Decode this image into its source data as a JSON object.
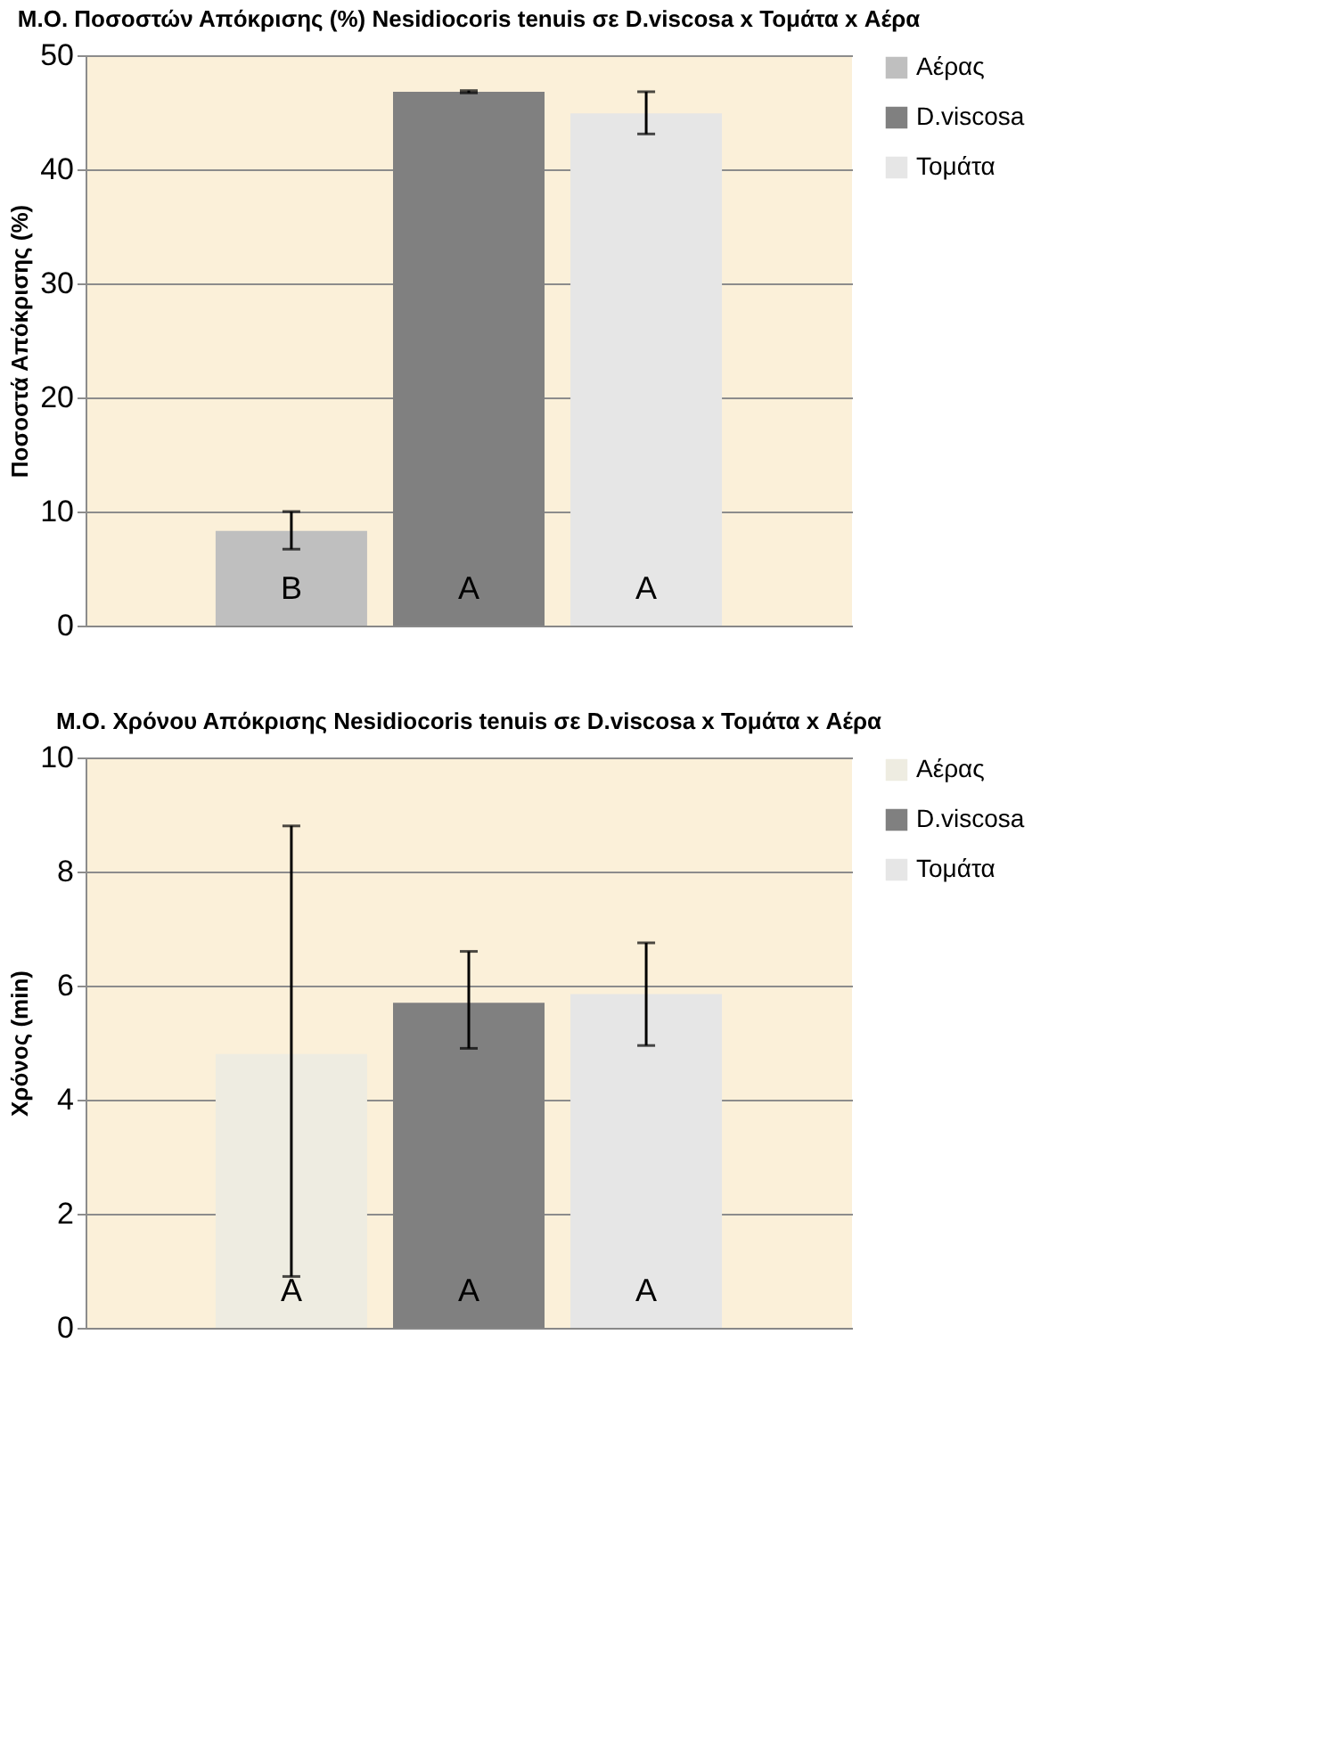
{
  "chart_data": [
    {
      "type": "bar",
      "title": "Μ.Ο. Ποσοστών Απόκρισης (%) Nesidiocoris tenuis σε D.viscosa x Τομάτα x Αέρα",
      "ylabel": "Ποσοστά Απόκρισης (%)",
      "categories": [
        null,
        null,
        null
      ],
      "ylim": [
        0,
        50
      ],
      "yticks": [
        0,
        10,
        20,
        30,
        40,
        50
      ],
      "grid": "y",
      "legend": "right",
      "tick_labels": "y",
      "series": [
        {
          "name": "Αέρας",
          "color": "#bfbfbf",
          "values": [
            8.3,
            null,
            null
          ],
          "errors": [
            [
              6.7,
              10.0
            ],
            null,
            null
          ]
        },
        {
          "name": "D.viscosa",
          "color": "#808080",
          "values": [
            null,
            46.8,
            null
          ],
          "errors": [
            null,
            [
              46.7,
              46.9
            ],
            null
          ]
        },
        {
          "name": "Τομάτα",
          "color": "#e6e6e6",
          "values": [
            null,
            null,
            44.9
          ],
          "errors": [
            null,
            null,
            [
              43.1,
              46.8
            ]
          ]
        }
      ],
      "annotations": [
        "B",
        "A",
        "A"
      ]
    },
    {
      "type": "bar",
      "title": "Μ.Ο. Χρόνου Απόκρισης Nesidiocoris tenuis σε D.viscosa x Τομάτα x Αέρα",
      "ylabel": "Χρόνος (min)",
      "categories": [
        null,
        null,
        null
      ],
      "ylim": [
        0,
        10
      ],
      "yticks": [
        0,
        2,
        4,
        6,
        8,
        10
      ],
      "grid": "y",
      "legend": "right",
      "tick_labels": "y",
      "series": [
        {
          "name": "Αέρας",
          "color": "#eeece1",
          "values": [
            4.8,
            null,
            null
          ],
          "errors": [
            [
              0.9,
              8.8
            ],
            null,
            null
          ]
        },
        {
          "name": "D.viscosa",
          "color": "#808080",
          "values": [
            null,
            5.7,
            null
          ],
          "errors": [
            null,
            [
              4.9,
              6.6
            ],
            null
          ]
        },
        {
          "name": "Τομάτα",
          "color": "#e6e6e6",
          "values": [
            null,
            null,
            5.85
          ],
          "errors": [
            null,
            null,
            [
              4.95,
              6.75
            ]
          ]
        }
      ],
      "annotations": [
        "A",
        "A",
        "A"
      ]
    }
  ]
}
